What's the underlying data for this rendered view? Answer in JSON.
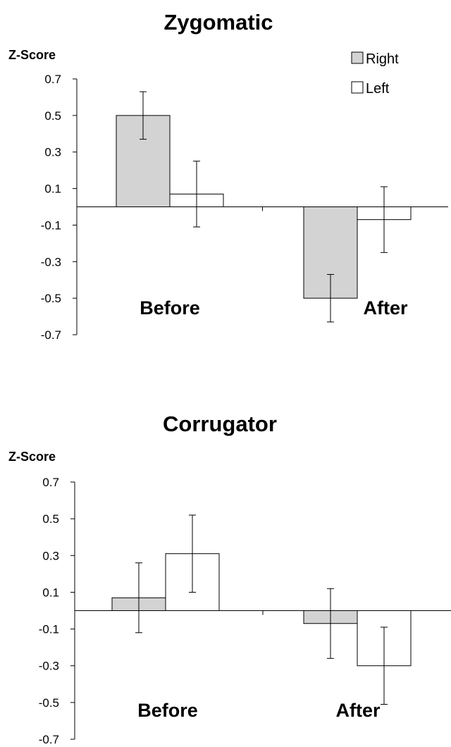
{
  "chart_data": [
    {
      "type": "bar",
      "title": "Zygomatic",
      "ylabel": "Z-Score",
      "xlabel": "",
      "ylim": [
        -0.7,
        0.7
      ],
      "yticks": [
        "0.7",
        "0.5",
        "0.3",
        "0.1",
        "-0.1",
        "-0.3",
        "-0.5",
        "-0.7"
      ],
      "categories": [
        "Before",
        "After"
      ],
      "legend": {
        "position": "top-right",
        "entries": [
          "Right",
          "Left"
        ]
      },
      "series": [
        {
          "name": "Right",
          "color": "#d3d3d3",
          "values": [
            0.5,
            -0.5
          ],
          "error": [
            0.13,
            0.13
          ]
        },
        {
          "name": "Left",
          "color": "#ffffff",
          "values": [
            0.07,
            -0.07
          ],
          "error": [
            0.18,
            0.18
          ]
        }
      ],
      "grid": false
    },
    {
      "type": "bar",
      "title": "Corrugator",
      "ylabel": "Z-Score",
      "xlabel": "",
      "ylim": [
        -0.7,
        0.7
      ],
      "yticks": [
        "0.7",
        "0.5",
        "0.3",
        "0.1",
        "-0.1",
        "-0.3",
        "-0.5",
        "-0.7"
      ],
      "categories": [
        "Before",
        "After"
      ],
      "series": [
        {
          "name": "Right",
          "color": "#d3d3d3",
          "values": [
            0.07,
            -0.07
          ],
          "error": [
            0.19,
            0.19
          ]
        },
        {
          "name": "Left",
          "color": "#ffffff",
          "values": [
            0.31,
            -0.3
          ],
          "error": [
            0.21,
            0.21
          ]
        }
      ],
      "grid": false
    }
  ]
}
